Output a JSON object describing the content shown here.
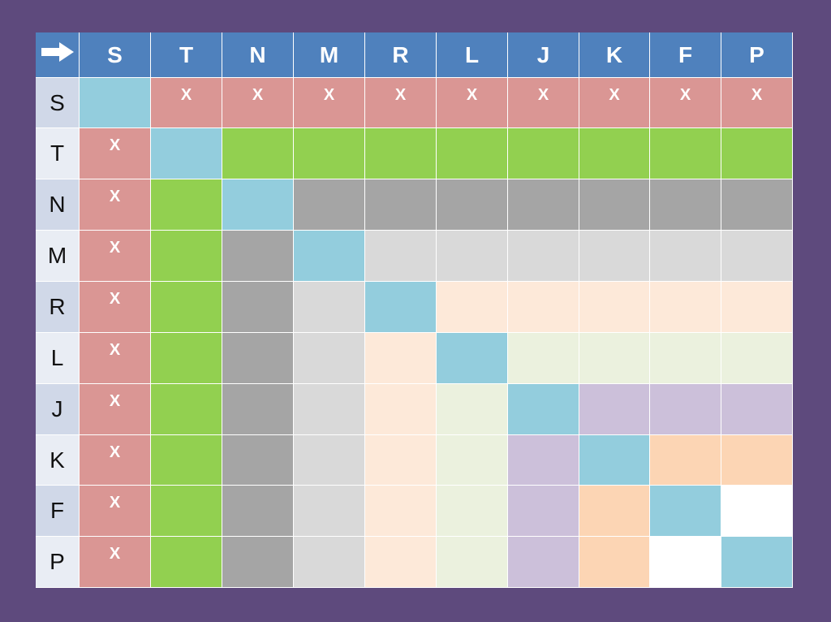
{
  "labels": [
    "S",
    "T",
    "N",
    "M",
    "R",
    "L",
    "J",
    "K",
    "F",
    "P"
  ],
  "corner_icon": "right-arrow-icon",
  "mark_text": "X",
  "colors": {
    "background": "#5e4a7d",
    "header": "#4f81bd",
    "row_header": "#d0d8e8",
    "row_header_alt": "#e9edf4",
    "diagonal": "#93cddd",
    "S": "#da9694",
    "T": "#92d050",
    "N": "#a5a5a5",
    "M": "#d9d9d9",
    "R": "#fde9d9",
    "L": "#ebf1de",
    "J": "#ccc0da",
    "K": "#fcd5b4",
    "F": "#ffffff"
  }
}
